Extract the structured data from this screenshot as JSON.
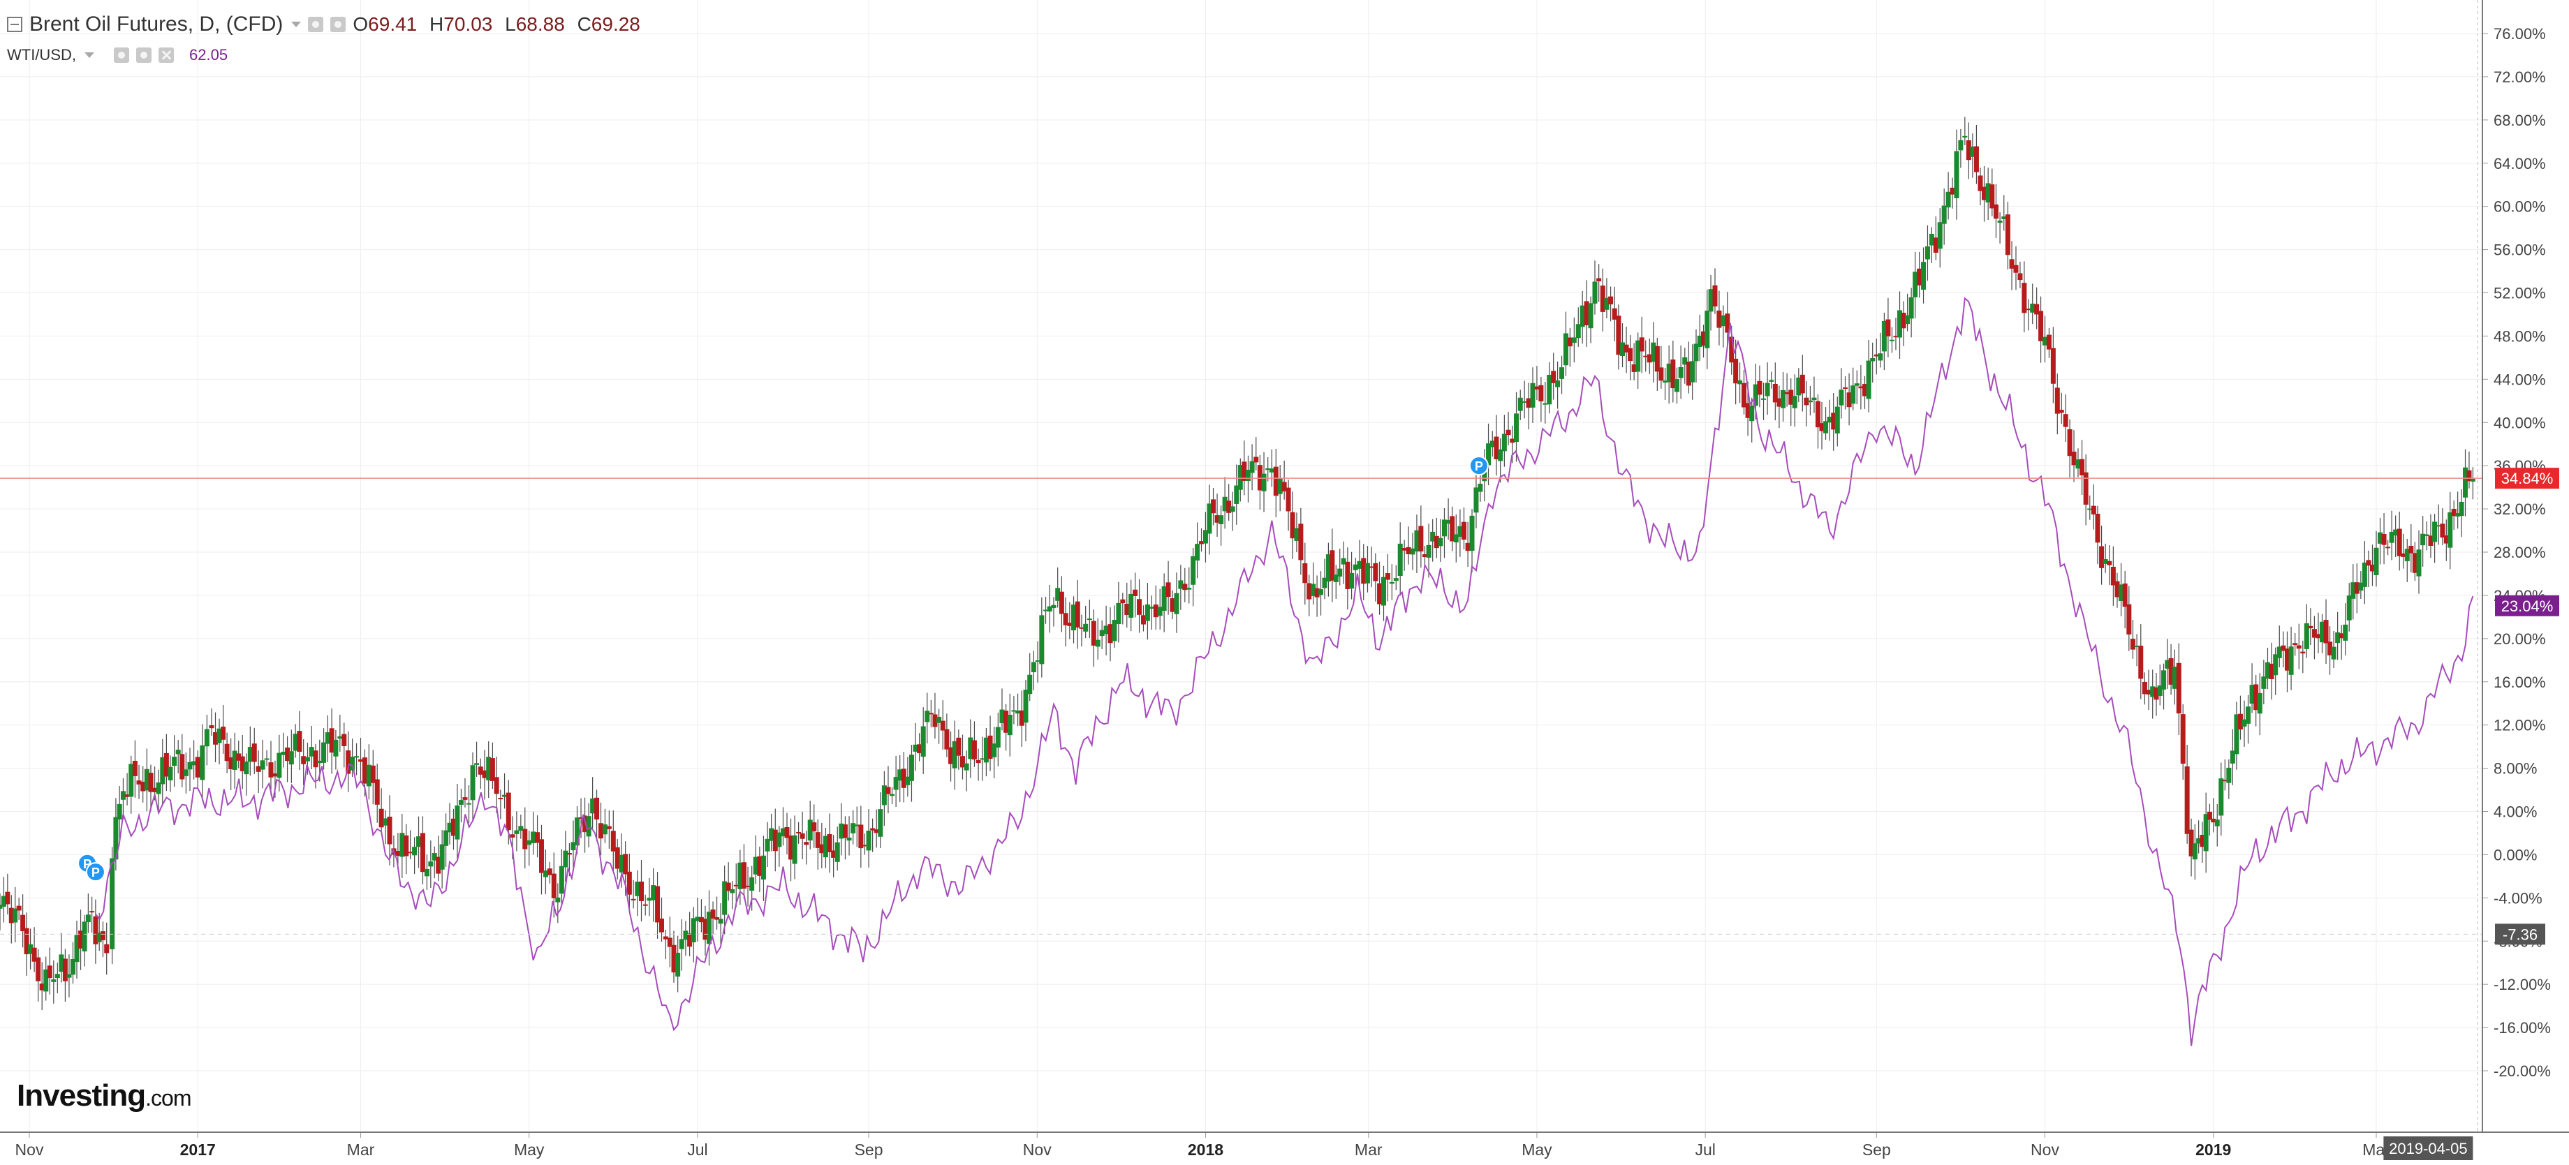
{
  "legend": {
    "main_title": "Brent Oil Futures, D, (CFD)",
    "ohlc": [
      {
        "key": "O",
        "value": "69.41"
      },
      {
        "key": "H",
        "value": "70.03"
      },
      {
        "key": "L",
        "value": "68.88"
      },
      {
        "key": "C",
        "value": "69.28"
      }
    ],
    "sub_title": "WTI/USD,",
    "sub_value": "62.05",
    "icons": [
      "collapse-icon",
      "settings-icon",
      "visibility-icon",
      "close-icon"
    ]
  },
  "logo": {
    "name": "Investing",
    "suffix": ".com"
  },
  "colors": {
    "up_candle": "#1b8a2e",
    "down_candle": "#b71c1c",
    "wti_line": "#a64dbb",
    "brent_marker": "#e8282b",
    "wti_marker": "#7b1f8f",
    "gray_marker": "#555555",
    "event_badge": "#2196f3"
  },
  "chart_data": {
    "type": "line",
    "x_axis": {
      "ticks": [
        {
          "label": "Nov",
          "date": "2016-11-01"
        },
        {
          "label": "2017",
          "date": "2017-01-01",
          "year": true
        },
        {
          "label": "Mar",
          "date": "2017-03-01"
        },
        {
          "label": "May",
          "date": "2017-05-01"
        },
        {
          "label": "Jul",
          "date": "2017-07-01"
        },
        {
          "label": "Sep",
          "date": "2017-09-01"
        },
        {
          "label": "Nov",
          "date": "2017-11-01"
        },
        {
          "label": "2018",
          "date": "2018-01-01",
          "year": true
        },
        {
          "label": "Mar",
          "date": "2018-03-01"
        },
        {
          "label": "May",
          "date": "2018-05-01"
        },
        {
          "label": "Jul",
          "date": "2018-07-01"
        },
        {
          "label": "Sep",
          "date": "2018-09-01"
        },
        {
          "label": "Nov",
          "date": "2018-11-01"
        },
        {
          "label": "2019",
          "date": "2019-01-01",
          "year": true
        },
        {
          "label": "Mar",
          "date": "2019-03-01"
        }
      ],
      "current_date_label": "2019-04-05"
    },
    "y_axis": {
      "unit": "%",
      "range": [
        -22,
        78
      ],
      "ticks": [
        "76.00%",
        "72.00%",
        "68.00%",
        "64.00%",
        "60.00%",
        "56.00%",
        "52.00%",
        "48.00%",
        "44.00%",
        "40.00%",
        "36.00%",
        "32.00%",
        "28.00%",
        "24.00%",
        "20.00%",
        "16.00%",
        "12.00%",
        "8.00%",
        "4.00%",
        "0.00%",
        "-4.00%",
        "-8.00%",
        "-12.00%",
        "-16.00%",
        "-20.00%"
      ],
      "position": "right",
      "grid": true
    },
    "markers": [
      {
        "series": "Brent Oil Futures",
        "label": "34.84%",
        "value": 34.84
      },
      {
        "series": "WTI/USD",
        "label": "23.04%",
        "value": 23.04
      },
      {
        "series": "cursor",
        "label": "-7.36",
        "value": -7.36
      }
    ],
    "series": [
      {
        "name": "Brent Oil Futures",
        "style": "candlestick",
        "points": [
          {
            "date": "2016-10-11",
            "value": 0
          },
          {
            "date": "2016-10-20",
            "value": -3
          },
          {
            "date": "2016-10-31",
            "value": -8
          },
          {
            "date": "2016-11-07",
            "value": -12
          },
          {
            "date": "2016-11-14",
            "value": -11
          },
          {
            "date": "2016-11-21",
            "value": -6
          },
          {
            "date": "2016-11-29",
            "value": -9
          },
          {
            "date": "2016-12-01",
            "value": 2
          },
          {
            "date": "2016-12-05",
            "value": 6
          },
          {
            "date": "2016-12-15",
            "value": 7
          },
          {
            "date": "2017-01-01",
            "value": 9
          },
          {
            "date": "2017-01-06",
            "value": 11
          },
          {
            "date": "2017-01-20",
            "value": 8
          },
          {
            "date": "2017-02-01",
            "value": 9
          },
          {
            "date": "2017-02-20",
            "value": 10
          },
          {
            "date": "2017-03-01",
            "value": 9
          },
          {
            "date": "2017-03-10",
            "value": 2
          },
          {
            "date": "2017-03-25",
            "value": -1
          },
          {
            "date": "2017-04-05",
            "value": 3
          },
          {
            "date": "2017-04-12",
            "value": 9
          },
          {
            "date": "2017-04-25",
            "value": 3
          },
          {
            "date": "2017-05-04",
            "value": 0
          },
          {
            "date": "2017-05-10",
            "value": -3
          },
          {
            "date": "2017-05-24",
            "value": 5
          },
          {
            "date": "2017-06-02",
            "value": -1
          },
          {
            "date": "2017-06-15",
            "value": -5
          },
          {
            "date": "2017-06-21",
            "value": -9
          },
          {
            "date": "2017-07-01",
            "value": -7
          },
          {
            "date": "2017-07-15",
            "value": -3
          },
          {
            "date": "2017-08-01",
            "value": 2
          },
          {
            "date": "2017-08-15",
            "value": 1
          },
          {
            "date": "2017-09-01",
            "value": 2
          },
          {
            "date": "2017-09-25",
            "value": 13
          },
          {
            "date": "2017-10-05",
            "value": 8
          },
          {
            "date": "2017-10-25",
            "value": 13
          },
          {
            "date": "2017-11-07",
            "value": 24
          },
          {
            "date": "2017-11-20",
            "value": 20
          },
          {
            "date": "2017-12-05",
            "value": 23
          },
          {
            "date": "2017-12-20",
            "value": 23
          },
          {
            "date": "2018-01-01",
            "value": 30
          },
          {
            "date": "2018-01-15",
            "value": 35
          },
          {
            "date": "2018-01-25",
            "value": 36
          },
          {
            "date": "2018-02-09",
            "value": 24
          },
          {
            "date": "2018-02-20",
            "value": 27
          },
          {
            "date": "2018-03-05",
            "value": 25
          },
          {
            "date": "2018-03-20",
            "value": 29
          },
          {
            "date": "2018-04-06",
            "value": 30
          },
          {
            "date": "2018-04-12",
            "value": 36
          },
          {
            "date": "2018-04-25",
            "value": 41
          },
          {
            "date": "2018-05-10",
            "value": 45
          },
          {
            "date": "2018-05-22",
            "value": 53
          },
          {
            "date": "2018-06-01",
            "value": 47
          },
          {
            "date": "2018-06-15",
            "value": 45
          },
          {
            "date": "2018-06-25",
            "value": 44
          },
          {
            "date": "2018-07-03",
            "value": 52
          },
          {
            "date": "2018-07-15",
            "value": 42
          },
          {
            "date": "2018-08-01",
            "value": 43
          },
          {
            "date": "2018-08-15",
            "value": 40
          },
          {
            "date": "2018-09-01",
            "value": 46
          },
          {
            "date": "2018-09-15",
            "value": 52
          },
          {
            "date": "2018-10-03",
            "value": 66
          },
          {
            "date": "2018-10-10",
            "value": 62
          },
          {
            "date": "2018-10-20",
            "value": 55
          },
          {
            "date": "2018-11-01",
            "value": 47
          },
          {
            "date": "2018-11-13",
            "value": 35
          },
          {
            "date": "2018-11-30",
            "value": 22
          },
          {
            "date": "2018-12-10",
            "value": 14
          },
          {
            "date": "2018-12-18",
            "value": 18
          },
          {
            "date": "2018-12-24",
            "value": -1
          },
          {
            "date": "2019-01-01",
            "value": 4
          },
          {
            "date": "2019-01-15",
            "value": 15
          },
          {
            "date": "2019-02-01",
            "value": 20
          },
          {
            "date": "2019-02-15",
            "value": 20
          },
          {
            "date": "2019-03-01",
            "value": 29
          },
          {
            "date": "2019-03-15",
            "value": 28
          },
          {
            "date": "2019-03-25",
            "value": 30
          },
          {
            "date": "2019-04-05",
            "value": 34.84
          }
        ]
      },
      {
        "name": "WTI/USD",
        "style": "line",
        "points": [
          {
            "date": "2016-11-25",
            "value": -6
          },
          {
            "date": "2016-12-05",
            "value": 2
          },
          {
            "date": "2016-12-15",
            "value": 4
          },
          {
            "date": "2017-01-01",
            "value": 5
          },
          {
            "date": "2017-01-20",
            "value": 5
          },
          {
            "date": "2017-02-15",
            "value": 7
          },
          {
            "date": "2017-03-01",
            "value": 7
          },
          {
            "date": "2017-03-10",
            "value": 0
          },
          {
            "date": "2017-03-25",
            "value": -5
          },
          {
            "date": "2017-04-05",
            "value": 0
          },
          {
            "date": "2017-04-15",
            "value": 6
          },
          {
            "date": "2017-04-25",
            "value": 0
          },
          {
            "date": "2017-05-04",
            "value": -10
          },
          {
            "date": "2017-05-22",
            "value": 3
          },
          {
            "date": "2017-06-05",
            "value": -4
          },
          {
            "date": "2017-06-21",
            "value": -16
          },
          {
            "date": "2017-07-05",
            "value": -9
          },
          {
            "date": "2017-07-15",
            "value": -5
          },
          {
            "date": "2017-08-01",
            "value": -3
          },
          {
            "date": "2017-08-15",
            "value": -6
          },
          {
            "date": "2017-08-30",
            "value": -9
          },
          {
            "date": "2017-09-20",
            "value": -1
          },
          {
            "date": "2017-10-05",
            "value": -3
          },
          {
            "date": "2017-10-25",
            "value": 3
          },
          {
            "date": "2017-11-07",
            "value": 13
          },
          {
            "date": "2017-11-15",
            "value": 8
          },
          {
            "date": "2017-12-01",
            "value": 16
          },
          {
            "date": "2017-12-20",
            "value": 13
          },
          {
            "date": "2018-01-05",
            "value": 20
          },
          {
            "date": "2018-01-25",
            "value": 30
          },
          {
            "date": "2018-02-09",
            "value": 17
          },
          {
            "date": "2018-02-25",
            "value": 24
          },
          {
            "date": "2018-03-05",
            "value": 20
          },
          {
            "date": "2018-03-20",
            "value": 26
          },
          {
            "date": "2018-04-06",
            "value": 23
          },
          {
            "date": "2018-04-15",
            "value": 34
          },
          {
            "date": "2018-05-10",
            "value": 40
          },
          {
            "date": "2018-05-22",
            "value": 44
          },
          {
            "date": "2018-06-01",
            "value": 35
          },
          {
            "date": "2018-06-15",
            "value": 29
          },
          {
            "date": "2018-06-29",
            "value": 28
          },
          {
            "date": "2018-07-10",
            "value": 49
          },
          {
            "date": "2018-07-20",
            "value": 40
          },
          {
            "date": "2018-08-15",
            "value": 30
          },
          {
            "date": "2018-09-01",
            "value": 40
          },
          {
            "date": "2018-09-15",
            "value": 36
          },
          {
            "date": "2018-10-03",
            "value": 51
          },
          {
            "date": "2018-10-15",
            "value": 43
          },
          {
            "date": "2018-11-01",
            "value": 33
          },
          {
            "date": "2018-11-15",
            "value": 21
          },
          {
            "date": "2018-12-01",
            "value": 10
          },
          {
            "date": "2018-12-10",
            "value": 1
          },
          {
            "date": "2018-12-20",
            "value": -8
          },
          {
            "date": "2018-12-24",
            "value": -16
          },
          {
            "date": "2019-01-01",
            "value": -10
          },
          {
            "date": "2019-01-15",
            "value": 0
          },
          {
            "date": "2019-02-01",
            "value": 4
          },
          {
            "date": "2019-02-15",
            "value": 8
          },
          {
            "date": "2019-03-01",
            "value": 10
          },
          {
            "date": "2019-03-15",
            "value": 12
          },
          {
            "date": "2019-04-01",
            "value": 19
          },
          {
            "date": "2019-04-05",
            "value": 23.04
          }
        ]
      }
    ]
  }
}
